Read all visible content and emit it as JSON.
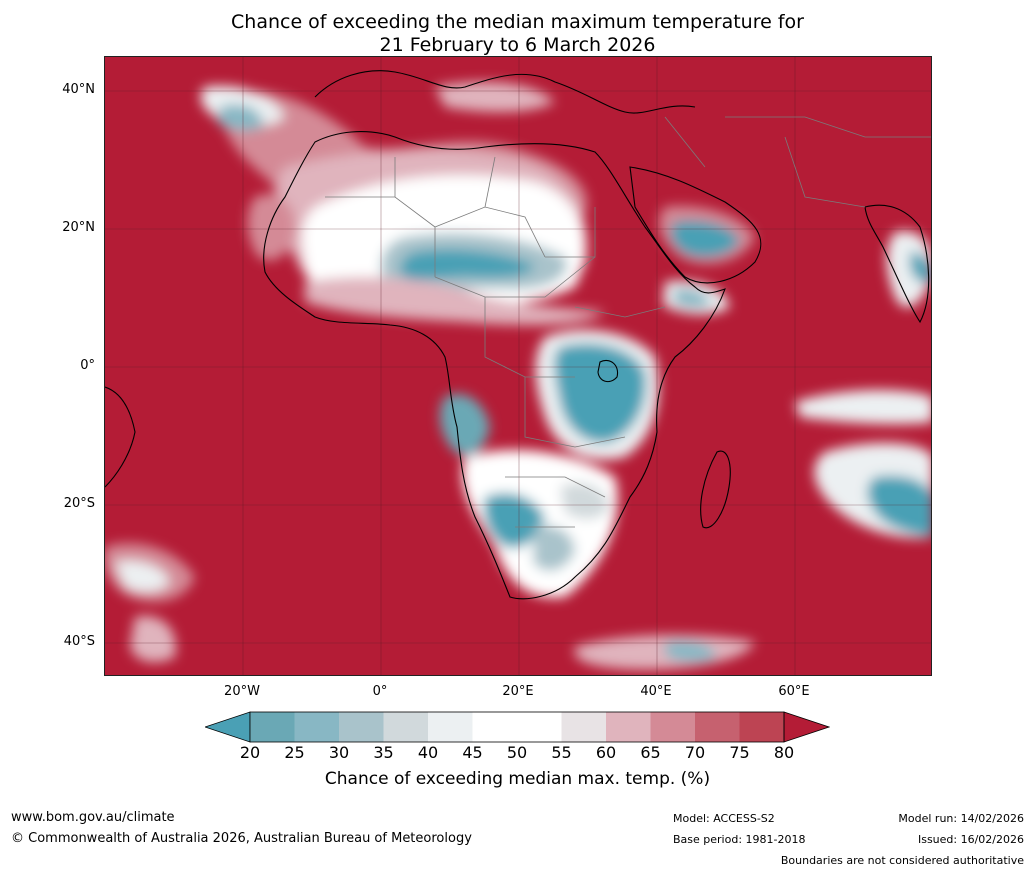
{
  "title": {
    "line1": "Chance of exceeding the median maximum temperature for",
    "line2": "21 February to 6 March 2026"
  },
  "map": {
    "lat_labels": [
      "40°N",
      "20°N",
      "0°",
      "20°S",
      "40°S"
    ],
    "lon_labels": [
      "20°W",
      "0°",
      "20°E",
      "40°E",
      "60°E"
    ]
  },
  "colorbar": {
    "ticks": [
      "20",
      "25",
      "30",
      "35",
      "40",
      "45",
      "50",
      "55",
      "60",
      "65",
      "70",
      "75",
      "80"
    ],
    "colors": [
      "#4aa0b5",
      "#6aa8b5",
      "#88b7c4",
      "#a9c3cb",
      "#d1d9dc",
      "#ecf0f2",
      "#ffffff",
      "#ffffff",
      "#e8e3e5",
      "#e0b4bd",
      "#d48a96",
      "#c6616f",
      "#bd4453",
      "#b41c36"
    ],
    "label": "Chance of exceeding median max. temp. (%)"
  },
  "footer": {
    "website": "www.bom.gov.au/climate",
    "copyright": "© Commonwealth of Australia 2026, Australian Bureau of Meteorology",
    "model": "Model: ACCESS-S2",
    "base_period": "Base period: 1981-2018",
    "model_run": "Model run: 14/02/2026",
    "issued": "Issued: 16/02/2026",
    "disclaimer": "Boundaries are not considered authoritative"
  }
}
